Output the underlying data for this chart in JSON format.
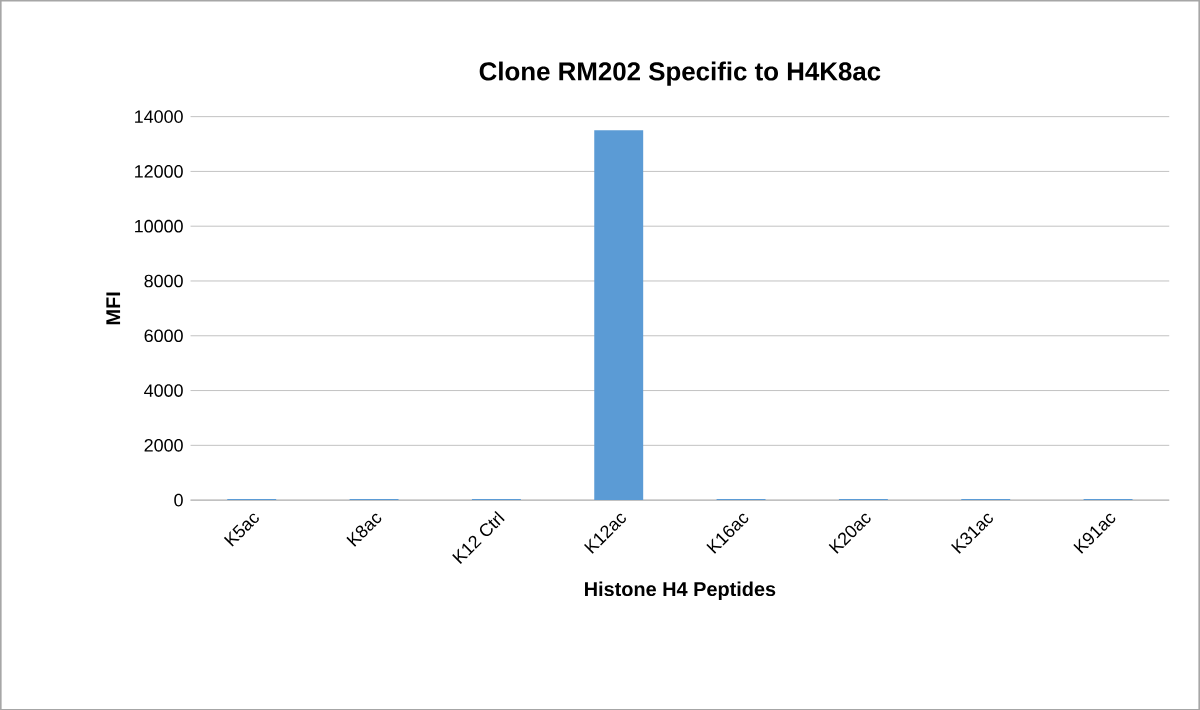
{
  "chart_data": {
    "type": "bar",
    "title": "Clone RM202 Specific to H4K8ac",
    "xlabel": "Histone H4 Peptides",
    "ylabel": "MFI",
    "categories": [
      "K5ac",
      "K8ac",
      "K12 Ctrl",
      "K12ac",
      "K16ac",
      "K20ac",
      "K31ac",
      "K91ac"
    ],
    "values": [
      40,
      40,
      40,
      13500,
      40,
      40,
      40,
      40
    ],
    "color": "#5b9bd5",
    "ylim": [
      0,
      14000
    ],
    "yticks": [
      0,
      2000,
      4000,
      6000,
      8000,
      10000,
      12000,
      14000
    ],
    "grid": "y"
  }
}
